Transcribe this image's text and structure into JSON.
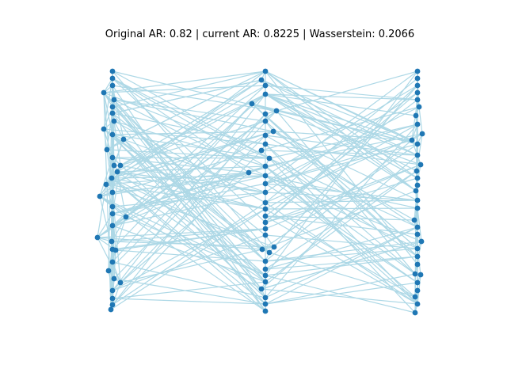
{
  "title": "Original AR: 0.82 | current AR: 0.8225 | Wasserstein: 0.2066",
  "colors": {
    "node": "#1f77b4",
    "edge": "#add8e6"
  }
}
